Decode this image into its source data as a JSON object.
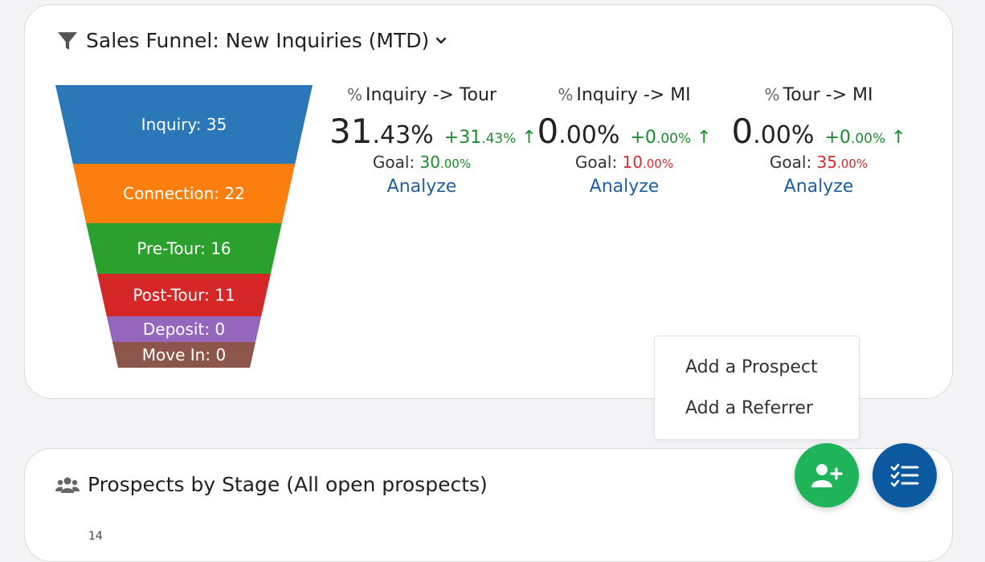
{
  "funnel_card": {
    "title": "Sales Funnel: New Inquiries (MTD)",
    "title_icon": "filter-icon",
    "dropdown_icon": "chevron-down-icon",
    "stages": [
      {
        "label": "Inquiry: 35",
        "value": 35,
        "color": "#2a78b8"
      },
      {
        "label": "Connection: 22",
        "value": 22,
        "color": "#fb7f0e"
      },
      {
        "label": "Pre-Tour: 16",
        "value": 16,
        "color": "#2ca02c"
      },
      {
        "label": "Post-Tour: 11",
        "value": 11,
        "color": "#d62728"
      },
      {
        "label": "Deposit: 0",
        "value": 0,
        "color": "#9467bd"
      },
      {
        "label": "Move In: 0",
        "value": 0,
        "color": "#8c564b"
      }
    ],
    "metrics": [
      {
        "label": "Inquiry -> Tour",
        "value_int": "31",
        "value_dec": ".43%",
        "change_main": "+31",
        "change_small": ".43%",
        "change_icon": "arrow-up-icon",
        "goal_label": "Goal:",
        "goal_main": "30",
        "goal_small": ".00%",
        "goal_status": "green",
        "analyze": "Analyze"
      },
      {
        "label": "Inquiry -> MI",
        "value_int": "0",
        "value_dec": ".00%",
        "change_main": "+0",
        "change_small": ".00%",
        "change_icon": "arrow-up-icon",
        "goal_label": "Goal:",
        "goal_main": "10",
        "goal_small": ".00%",
        "goal_status": "red",
        "analyze": "Analyze"
      },
      {
        "label": "Tour -> MI",
        "value_int": "0",
        "value_dec": ".00%",
        "change_main": "+0",
        "change_small": ".00%",
        "change_icon": "arrow-up-icon",
        "goal_label": "Goal:",
        "goal_main": "35",
        "goal_small": ".00%",
        "goal_status": "red",
        "analyze": "Analyze"
      }
    ]
  },
  "menu": {
    "items": [
      "Add a Prospect",
      "Add a Referrer"
    ]
  },
  "stage_card": {
    "title": "Prospects by Stage (All open prospects)",
    "title_icon": "users-icon",
    "peek_text": "14"
  },
  "fabs": {
    "add_icon": "add-user-icon",
    "list_icon": "checklist-icon",
    "add_color": "#1fb35a",
    "list_color": "#0b5aa0"
  }
}
